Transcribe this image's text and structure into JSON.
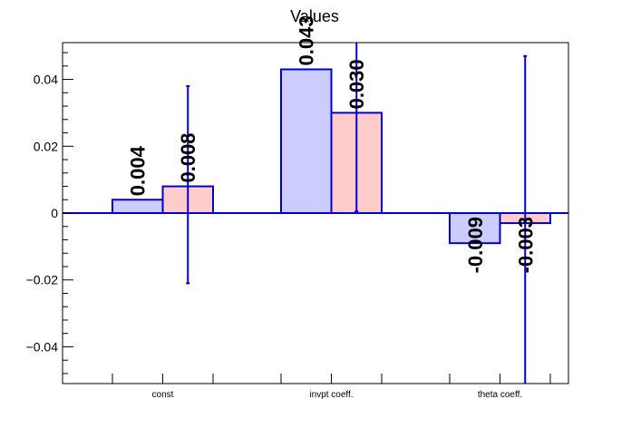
{
  "chart_data": {
    "type": "bar",
    "title": "Values",
    "categories": [
      "const",
      "invpt coeff.",
      "theta coeff."
    ],
    "series": [
      {
        "values": [
          0.004,
          0.043,
          -0.009
        ],
        "fill": "#ccccff",
        "stroke": "#0000cc",
        "labels": [
          "0.004",
          "0.043",
          "-0.009"
        ]
      },
      {
        "values": [
          0.008,
          0.03,
          -0.003
        ],
        "fill": "#ffcccc",
        "stroke": "#0000cc",
        "labels": [
          "0.008",
          "0.030",
          "-0.003"
        ],
        "errors": [
          [
            -0.021,
            0.038
          ],
          [
            0.0005,
            0.052
          ],
          [
            -0.052,
            0.047
          ]
        ]
      }
    ],
    "ylim": [
      -0.051,
      0.051
    ],
    "yticks": [
      -0.04,
      -0.02,
      0,
      0.02,
      0.04
    ],
    "ytick_labels": [
      "−0.04",
      "−0.02",
      "0",
      "0.02",
      "0.04"
    ],
    "error_color": "#0000cc",
    "grid": false
  }
}
